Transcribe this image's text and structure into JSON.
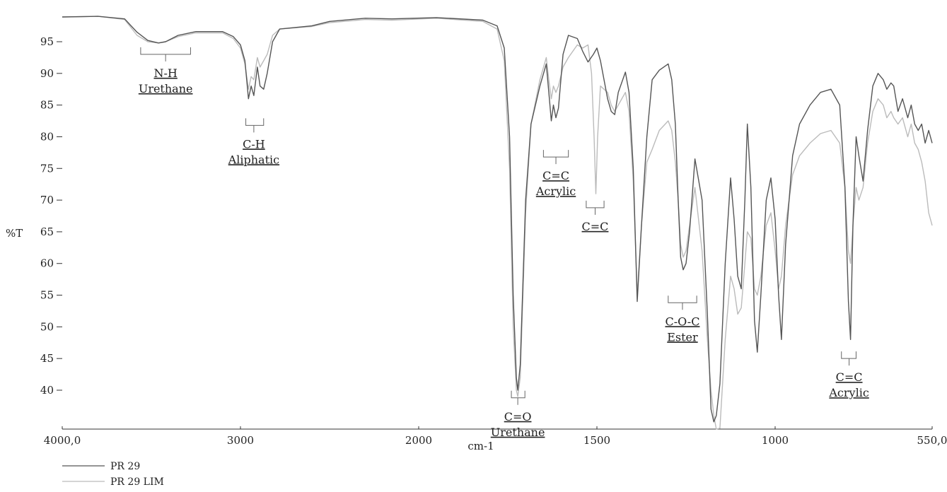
{
  "chart_data": {
    "type": "line",
    "xlabel": "cm-1",
    "ylabel": "%T",
    "xlim": [
      4000,
      550
    ],
    "x_ticks": [
      4000,
      3000,
      2000,
      1500,
      1000,
      550
    ],
    "x_tick_labels": [
      "4000,0",
      "3000",
      "2000",
      "1500",
      "1000",
      "550,0"
    ],
    "ylim": [
      34,
      100
    ],
    "y_ticks": [
      40,
      45,
      50,
      55,
      60,
      65,
      70,
      75,
      80,
      85,
      90,
      95
    ],
    "grid": false,
    "legend_position": "bottom-left",
    "series": [
      {
        "name": "PR 29",
        "color": "#555555",
        "points": [
          [
            4000,
            98.9
          ],
          [
            3800,
            99
          ],
          [
            3650,
            98.6
          ],
          [
            3580,
            96.5
          ],
          [
            3520,
            95.2
          ],
          [
            3460,
            94.8
          ],
          [
            3420,
            95
          ],
          [
            3350,
            96
          ],
          [
            3250,
            96.6
          ],
          [
            3100,
            96.6
          ],
          [
            3040,
            95.8
          ],
          [
            3000,
            94.5
          ],
          [
            2975,
            92
          ],
          [
            2955,
            86
          ],
          [
            2940,
            88
          ],
          [
            2925,
            86.5
          ],
          [
            2905,
            91
          ],
          [
            2890,
            88
          ],
          [
            2870,
            87.5
          ],
          [
            2850,
            90
          ],
          [
            2820,
            95
          ],
          [
            2780,
            97
          ],
          [
            2600,
            97.5
          ],
          [
            2500,
            98.2
          ],
          [
            2300,
            98.7
          ],
          [
            2150,
            98.6
          ],
          [
            1950,
            98.8
          ],
          [
            1820,
            98.4
          ],
          [
            1780,
            97.5
          ],
          [
            1760,
            94
          ],
          [
            1745,
            80
          ],
          [
            1735,
            55
          ],
          [
            1726,
            42
          ],
          [
            1722,
            40
          ],
          [
            1715,
            44
          ],
          [
            1700,
            70
          ],
          [
            1685,
            82
          ],
          [
            1660,
            88
          ],
          [
            1642,
            91.5
          ],
          [
            1635,
            87
          ],
          [
            1628,
            82.5
          ],
          [
            1622,
            85
          ],
          [
            1615,
            83
          ],
          [
            1608,
            84.5
          ],
          [
            1595,
            93
          ],
          [
            1580,
            96
          ],
          [
            1555,
            95.5
          ],
          [
            1540,
            93.5
          ],
          [
            1525,
            91.8
          ],
          [
            1510,
            93
          ],
          [
            1500,
            94
          ],
          [
            1490,
            92
          ],
          [
            1470,
            86
          ],
          [
            1460,
            84
          ],
          [
            1450,
            83.5
          ],
          [
            1440,
            87
          ],
          [
            1420,
            90.2
          ],
          [
            1410,
            87
          ],
          [
            1398,
            75
          ],
          [
            1387,
            54
          ],
          [
            1375,
            66
          ],
          [
            1360,
            80
          ],
          [
            1345,
            89
          ],
          [
            1325,
            90.5
          ],
          [
            1300,
            91.5
          ],
          [
            1290,
            89
          ],
          [
            1280,
            82
          ],
          [
            1272,
            70
          ],
          [
            1265,
            61
          ],
          [
            1258,
            59
          ],
          [
            1250,
            60
          ],
          [
            1240,
            65
          ],
          [
            1225,
            76.5
          ],
          [
            1205,
            70
          ],
          [
            1190,
            52
          ],
          [
            1180,
            37
          ],
          [
            1172,
            35
          ],
          [
            1165,
            36
          ],
          [
            1155,
            41
          ],
          [
            1140,
            60
          ],
          [
            1125,
            73.5
          ],
          [
            1115,
            67
          ],
          [
            1105,
            58
          ],
          [
            1095,
            56
          ],
          [
            1085,
            70
          ],
          [
            1078,
            82
          ],
          [
            1068,
            72
          ],
          [
            1058,
            51
          ],
          [
            1050,
            46
          ],
          [
            1040,
            55
          ],
          [
            1025,
            70
          ],
          [
            1012,
            73.5
          ],
          [
            1000,
            67
          ],
          [
            990,
            55
          ],
          [
            982,
            48
          ],
          [
            970,
            63
          ],
          [
            950,
            77
          ],
          [
            930,
            82
          ],
          [
            900,
            85
          ],
          [
            870,
            87
          ],
          [
            840,
            87.5
          ],
          [
            815,
            85
          ],
          [
            800,
            72
          ],
          [
            790,
            54
          ],
          [
            784,
            48
          ],
          [
            777,
            66
          ],
          [
            768,
            80
          ],
          [
            760,
            77
          ],
          [
            748,
            73
          ],
          [
            735,
            81
          ],
          [
            720,
            88
          ],
          [
            705,
            90
          ],
          [
            690,
            89
          ],
          [
            680,
            87.5
          ],
          [
            668,
            88.5
          ],
          [
            660,
            88
          ],
          [
            648,
            84
          ],
          [
            635,
            86
          ],
          [
            620,
            83
          ],
          [
            610,
            85
          ],
          [
            600,
            82
          ],
          [
            590,
            81
          ],
          [
            580,
            82
          ],
          [
            570,
            79
          ],
          [
            560,
            81
          ],
          [
            550,
            79
          ]
        ]
      },
      {
        "name": "PR 29 LIM",
        "color": "#bbbbbb",
        "points": [
          [
            4000,
            98.9
          ],
          [
            3800,
            99
          ],
          [
            3650,
            98.5
          ],
          [
            3580,
            96
          ],
          [
            3520,
            95
          ],
          [
            3460,
            94.8
          ],
          [
            3420,
            95
          ],
          [
            3350,
            95.8
          ],
          [
            3250,
            96.4
          ],
          [
            3100,
            96.4
          ],
          [
            3040,
            95.5
          ],
          [
            3000,
            94
          ],
          [
            2975,
            91.5
          ],
          [
            2955,
            87.5
          ],
          [
            2940,
            89.5
          ],
          [
            2925,
            89
          ],
          [
            2905,
            92.5
          ],
          [
            2890,
            91
          ],
          [
            2870,
            92
          ],
          [
            2850,
            93
          ],
          [
            2820,
            96
          ],
          [
            2780,
            97
          ],
          [
            2600,
            97.4
          ],
          [
            2500,
            98
          ],
          [
            2300,
            98.5
          ],
          [
            2150,
            98.4
          ],
          [
            1950,
            98.7
          ],
          [
            1820,
            98.2
          ],
          [
            1780,
            97
          ],
          [
            1760,
            92
          ],
          [
            1745,
            75
          ],
          [
            1735,
            50
          ],
          [
            1726,
            40
          ],
          [
            1722,
            39
          ],
          [
            1715,
            42
          ],
          [
            1700,
            68
          ],
          [
            1685,
            82
          ],
          [
            1660,
            89
          ],
          [
            1642,
            92.5
          ],
          [
            1635,
            89
          ],
          [
            1628,
            86
          ],
          [
            1622,
            88
          ],
          [
            1615,
            87
          ],
          [
            1608,
            88
          ],
          [
            1595,
            91
          ],
          [
            1580,
            92.5
          ],
          [
            1555,
            94.5
          ],
          [
            1540,
            94
          ],
          [
            1525,
            94.5
          ],
          [
            1515,
            90
          ],
          [
            1508,
            80
          ],
          [
            1503,
            71
          ],
          [
            1498,
            80
          ],
          [
            1490,
            88
          ],
          [
            1470,
            87
          ],
          [
            1460,
            85
          ],
          [
            1450,
            84
          ],
          [
            1440,
            85
          ],
          [
            1420,
            87
          ],
          [
            1410,
            84
          ],
          [
            1398,
            73
          ],
          [
            1387,
            55
          ],
          [
            1375,
            66
          ],
          [
            1360,
            76
          ],
          [
            1345,
            78
          ],
          [
            1325,
            81
          ],
          [
            1300,
            82.5
          ],
          [
            1290,
            81
          ],
          [
            1280,
            76
          ],
          [
            1272,
            70
          ],
          [
            1265,
            63
          ],
          [
            1258,
            61
          ],
          [
            1250,
            62
          ],
          [
            1240,
            66
          ],
          [
            1225,
            72
          ],
          [
            1205,
            62
          ],
          [
            1190,
            48
          ],
          [
            1180,
            40
          ],
          [
            1172,
            36
          ],
          [
            1165,
            33
          ],
          [
            1155,
            34
          ],
          [
            1140,
            48
          ],
          [
            1125,
            58
          ],
          [
            1115,
            56
          ],
          [
            1105,
            52
          ],
          [
            1095,
            53
          ],
          [
            1085,
            60
          ],
          [
            1078,
            65
          ],
          [
            1068,
            64
          ],
          [
            1058,
            56
          ],
          [
            1050,
            55
          ],
          [
            1040,
            58
          ],
          [
            1025,
            66
          ],
          [
            1012,
            68
          ],
          [
            1000,
            62
          ],
          [
            990,
            56
          ],
          [
            982,
            58
          ],
          [
            970,
            66
          ],
          [
            950,
            74
          ],
          [
            930,
            77
          ],
          [
            900,
            79
          ],
          [
            870,
            80.5
          ],
          [
            840,
            81
          ],
          [
            815,
            79
          ],
          [
            800,
            72
          ],
          [
            790,
            62
          ],
          [
            784,
            60
          ],
          [
            777,
            66
          ],
          [
            768,
            72
          ],
          [
            760,
            70
          ],
          [
            748,
            72
          ],
          [
            735,
            79
          ],
          [
            720,
            84
          ],
          [
            705,
            86
          ],
          [
            690,
            85
          ],
          [
            680,
            83
          ],
          [
            668,
            84
          ],
          [
            660,
            83
          ],
          [
            648,
            82
          ],
          [
            635,
            83
          ],
          [
            620,
            80
          ],
          [
            610,
            82
          ],
          [
            600,
            79
          ],
          [
            590,
            78
          ],
          [
            580,
            76
          ],
          [
            570,
            73
          ],
          [
            560,
            68
          ],
          [
            550,
            66
          ]
        ]
      }
    ],
    "annotations": [
      {
        "x": 3420,
        "bracket_y": 93,
        "from": 3560,
        "to": 3280,
        "lines": [
          "N-H",
          "Urethane"
        ]
      },
      {
        "x": 2925,
        "bracket_y": 81.8,
        "from": 2970,
        "to": 2870,
        "lines": [
          "C-H",
          "Aliphatic"
        ]
      },
      {
        "x": 1615,
        "bracket_y": 76.8,
        "from": 1650,
        "to": 1580,
        "lines": [
          "C=C",
          "Acrylic"
        ]
      },
      {
        "x": 1505,
        "bracket_y": 68.8,
        "from": 1530,
        "to": 1480,
        "lines": [
          "C=C"
        ]
      },
      {
        "x": 1260,
        "bracket_y": 53.8,
        "from": 1300,
        "to": 1220,
        "lines": [
          "C-O-C",
          "Ester"
        ]
      },
      {
        "x": 1722,
        "bracket_y": 38.8,
        "from": 1740,
        "to": 1702,
        "lines": [
          "C=O",
          "Urethane"
        ]
      },
      {
        "x": 788,
        "bracket_y": 45,
        "from": 810,
        "to": 768,
        "lines": [
          "C=C",
          "Acrylic"
        ]
      }
    ]
  }
}
